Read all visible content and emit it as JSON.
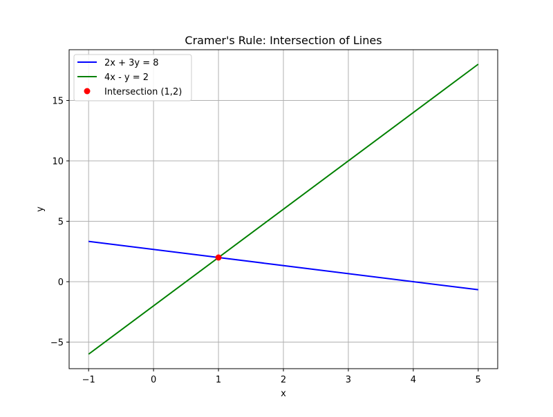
{
  "chart_data": {
    "type": "line",
    "title": "Cramer's Rule: Intersection of Lines",
    "xlabel": "x",
    "ylabel": "y",
    "xlim": [
      -1.3,
      5.3
    ],
    "ylim": [
      -7.2,
      19.2
    ],
    "x_ticks": [
      -1,
      0,
      1,
      2,
      3,
      4,
      5
    ],
    "x_tick_labels": [
      "−1",
      "0",
      "1",
      "2",
      "3",
      "4",
      "5"
    ],
    "y_ticks": [
      -5,
      0,
      5,
      10,
      15
    ],
    "y_tick_labels": [
      "−5",
      "0",
      "5",
      "10",
      "15"
    ],
    "grid": true,
    "legend_position": "top-left",
    "series": [
      {
        "name": "2x + 3y = 8",
        "kind": "line",
        "color": "#0000ff",
        "x": [
          -1,
          5
        ],
        "y": [
          3.333,
          -0.667
        ]
      },
      {
        "name": "4x - y = 2",
        "kind": "line",
        "color": "#008000",
        "x": [
          -1,
          5
        ],
        "y": [
          -6,
          18
        ]
      },
      {
        "name": "Intersection (1,2)",
        "kind": "scatter",
        "color": "#ff0000",
        "x": [
          1
        ],
        "y": [
          2
        ]
      }
    ]
  }
}
